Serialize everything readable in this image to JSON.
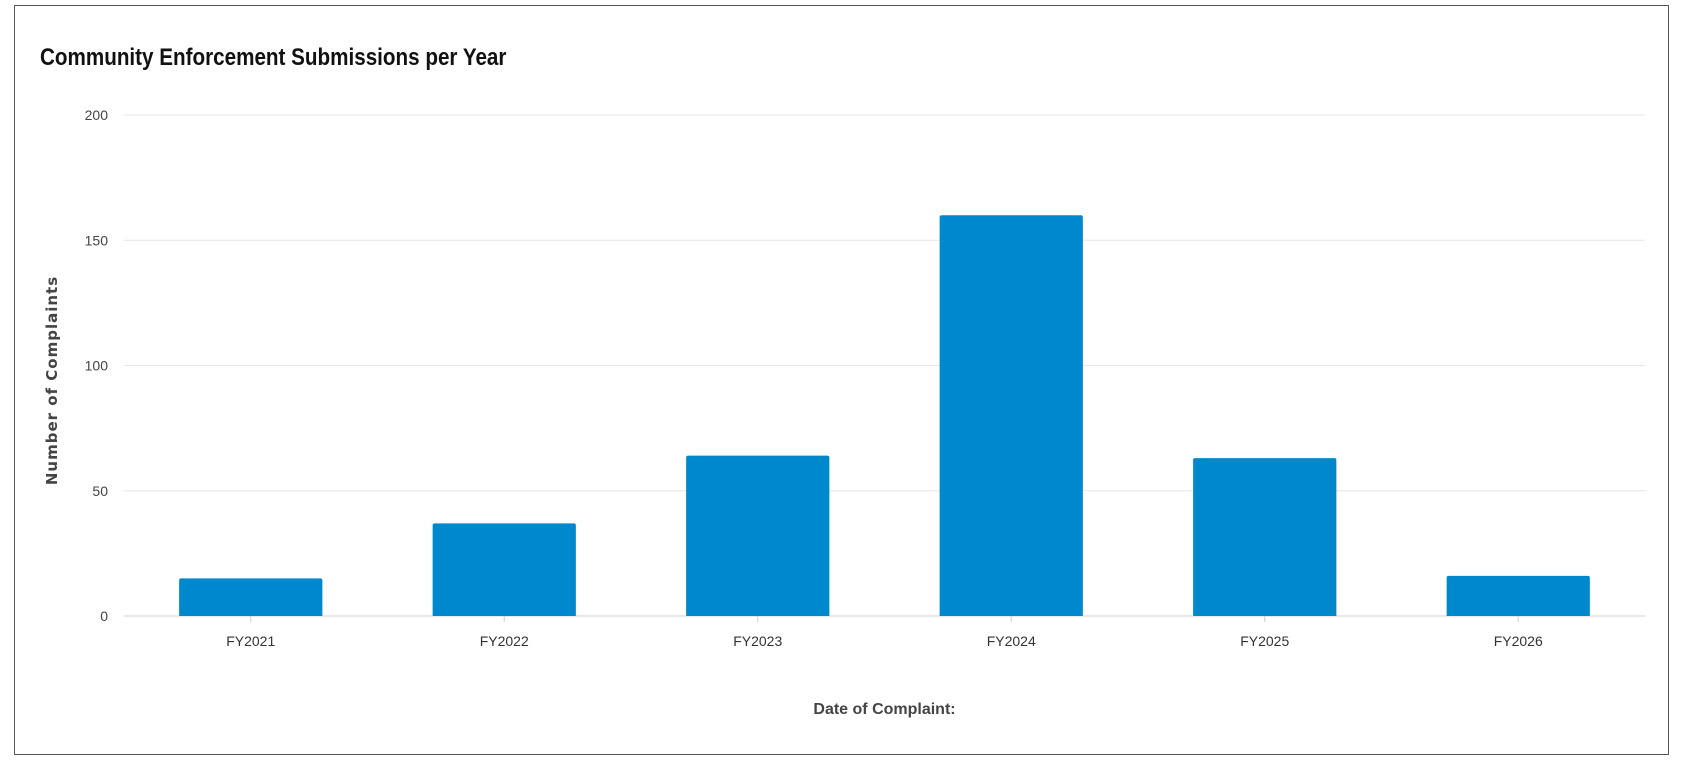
{
  "chart_data": {
    "type": "bar",
    "title": "Community Enforcement Submissions per Year",
    "xlabel": "Date of Complaint:",
    "ylabel": "Number of Complaints",
    "categories": [
      "FY2021",
      "FY2022",
      "FY2023",
      "FY2024",
      "FY2025",
      "FY2026"
    ],
    "values": [
      15,
      37,
      64,
      160,
      63,
      16
    ],
    "ylim": [
      0,
      200
    ],
    "yticks": [
      0,
      50,
      100,
      150,
      200
    ],
    "grid": true,
    "legend": "none",
    "bar_color": "#0088cc",
    "grid_color": "#e6e6e6"
  }
}
